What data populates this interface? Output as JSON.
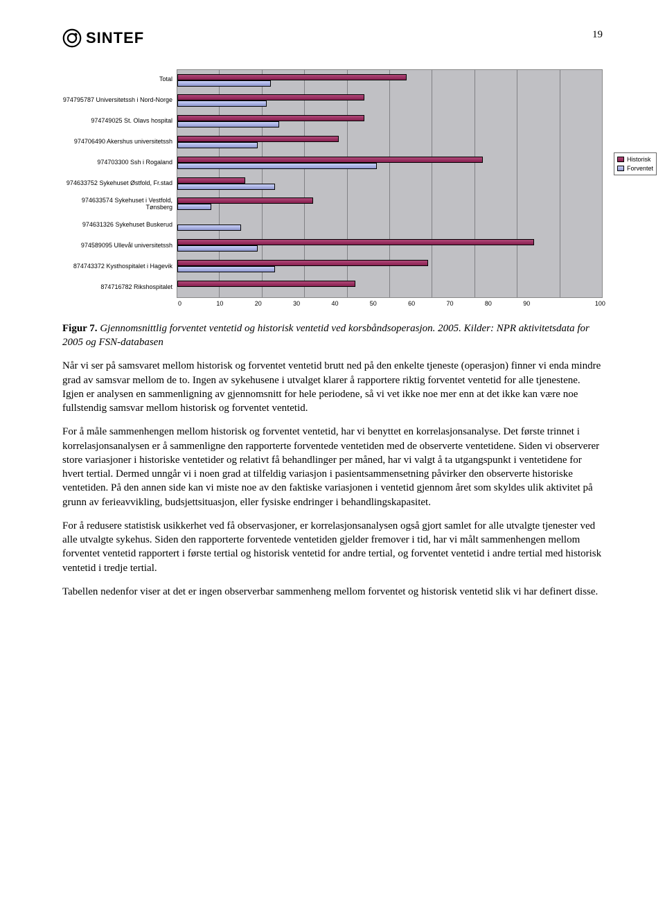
{
  "page_number": "19",
  "logo_text": "SINTEF",
  "chart": {
    "type": "horizontal-grouped-bar",
    "background_color": "#c0c0c4",
    "grid_color": "#808084",
    "series_colors": {
      "historisk": "#a03060",
      "forventet": "#b0b8e8"
    },
    "xlim": [
      0,
      100
    ],
    "xtick_step": 10,
    "xtick_labels": [
      "0",
      "10",
      "20",
      "30",
      "40",
      "50",
      "60",
      "70",
      "80",
      "90",
      "100"
    ],
    "legend": {
      "historisk": "Historisk",
      "forventet": "Forventet"
    },
    "rows": [
      {
        "label": "Total",
        "historisk": 54,
        "forventet": 22
      },
      {
        "label": "974795787  Universitetssh i Nord-Norge",
        "historisk": 44,
        "forventet": 21
      },
      {
        "label": "974749025  St. Olavs hospital",
        "historisk": 44,
        "forventet": 24
      },
      {
        "label": "974706490  Akershus universitetssh",
        "historisk": 38,
        "forventet": 19
      },
      {
        "label": "974703300  Ssh i Rogaland",
        "historisk": 72,
        "forventet": 47
      },
      {
        "label": "974633752  Sykehuset Østfold, Fr.stad",
        "historisk": 16,
        "forventet": 23
      },
      {
        "label": "974633574  Sykehuset i Vestfold, Tønsberg",
        "historisk": 32,
        "forventet": 8
      },
      {
        "label": "974631326  Sykehuset Buskerud",
        "historisk": 0,
        "forventet": 15
      },
      {
        "label": "974589095  Ullevål universitetssh",
        "historisk": 84,
        "forventet": 19
      },
      {
        "label": "874743372  Kysthospitalet i Hagevik",
        "historisk": 59,
        "forventet": 23
      },
      {
        "label": "874716782  Rikshospitalet",
        "historisk": 42,
        "forventet": 0
      }
    ]
  },
  "figure_label": "Figur 7.",
  "figure_title": "Gjennomsnittlig forventet ventetid og historisk ventetid ved korsbåndsoperasjon. 2005. Kilder: NPR aktivitetsdata for 2005 og FSN-databasen",
  "paragraphs": [
    "Når vi ser på samsvaret mellom historisk og forventet ventetid brutt ned på den enkelte tjeneste (operasjon) finner vi enda mindre grad av samsvar mellom de to. Ingen av sykehusene i utvalget klarer å rapportere riktig forventet ventetid for alle tjenestene. Igjen er analysen en sammenligning av gjennomsnitt for hele periodene, så vi vet ikke noe mer enn at det ikke kan være noe fullstendig samsvar mellom historisk og forventet ventetid.",
    "For å måle sammenhengen mellom historisk og forventet ventetid, har vi benyttet en korrelasjonsanalyse. Det første trinnet i korrelasjonsanalysen er å sammenligne den rapporterte forventede ventetiden med de observerte ventetidene. Siden vi observerer store variasjoner i historiske ventetider og relativt få behandlinger per måned, har vi valgt å ta utgangspunkt i ventetidene for hvert tertial. Dermed unngår vi i noen grad at tilfeldig variasjon i pasientsammensetning påvirker den observerte historiske ventetiden. På den annen side kan vi miste noe av den faktiske variasjonen i ventetid gjennom året som skyldes ulik aktivitet på grunn av ferieavvikling, budsjettsituasjon, eller fysiske endringer i behandlingskapasitet.",
    "For å redusere statistisk usikkerhet ved få observasjoner, er korrelasjonsanalysen også gjort samlet for alle utvalgte tjenester ved alle utvalgte sykehus. Siden den rapporterte forventede ventetiden gjelder fremover i tid, har vi målt sammenhengen mellom forventet ventetid rapportert i første tertial og historisk ventetid for andre tertial, og forventet ventetid i andre tertial med historisk ventetid i tredje tertial.",
    "Tabellen nedenfor viser at det er ingen observerbar sammenheng mellom forventet og historisk ventetid slik vi har definert disse."
  ]
}
